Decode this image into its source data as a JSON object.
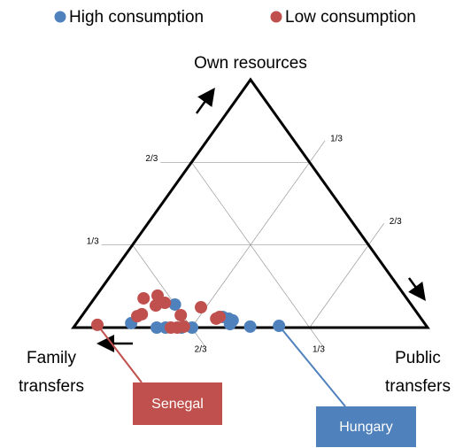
{
  "chart_data": {
    "type": "ternary",
    "axes": {
      "own": {
        "label": "Own resources",
        "ticks": [
          {
            "value": 0.3333,
            "label": "1/3"
          },
          {
            "value": 0.6667,
            "label": "2/3"
          }
        ]
      },
      "public": {
        "label": "Public transfers",
        "ticks": [
          {
            "value": 0.3333,
            "label": "1/3"
          },
          {
            "value": 0.6667,
            "label": "2/3"
          }
        ]
      },
      "family": {
        "label": "Family transfers",
        "ticks": [
          {
            "value": 0.3333,
            "label": "1/3"
          },
          {
            "value": 0.6667,
            "label": "2/3"
          }
        ]
      }
    },
    "series": [
      {
        "name": "High consumption",
        "color": "#4f81bd",
        "own": [
          0.018,
          0,
          0,
          0.093,
          0,
          0,
          0.043,
          0.036,
          0.014,
          0.029,
          0.004,
          0.007
        ],
        "public": [
          0.154,
          0.235,
          0.26,
          0.24,
          0.305,
          0.335,
          0.4,
          0.42,
          0.435,
          0.435,
          0.497,
          0.577
        ]
      },
      {
        "name": "Low consumption",
        "color": "#c0504d",
        "own": [
          0.011,
          0.046,
          0.054,
          0.118,
          0.129,
          0.089,
          0.1,
          0.05,
          0,
          0.004,
          0.082,
          0.036,
          0.043,
          0
        ],
        "public": [
          0.062,
          0.157,
          0.166,
          0.139,
          0.173,
          0.188,
          0.208,
          0.278,
          0.293,
          0.31,
          0.319,
          0.385,
          0.391,
          0.275
        ]
      }
    ],
    "annotations": [
      "Senegal",
      "Hungary"
    ],
    "legend": "top"
  }
}
